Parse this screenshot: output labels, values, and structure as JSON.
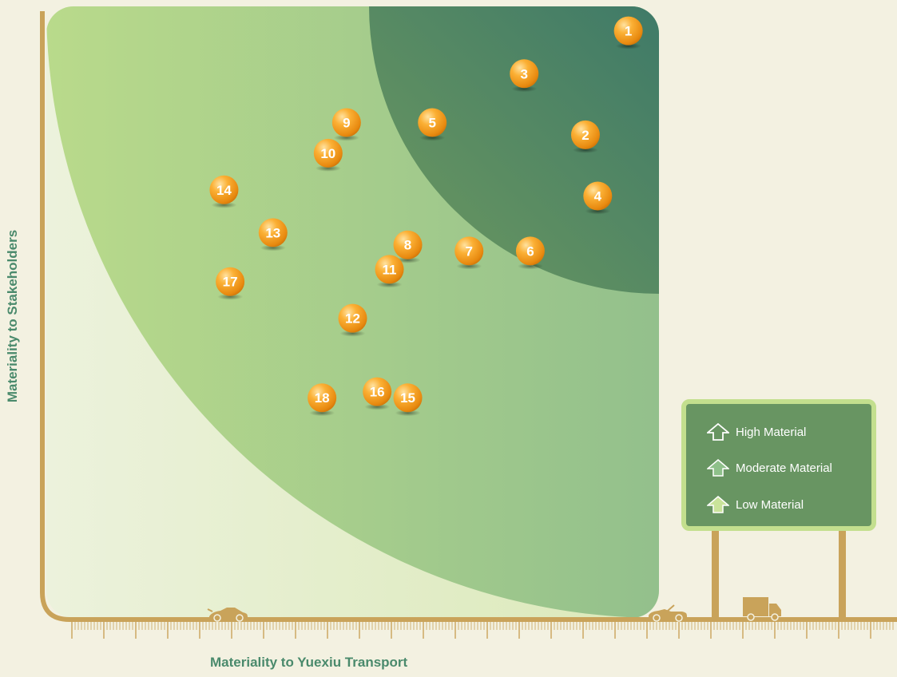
{
  "chart_data": {
    "type": "scatter",
    "title": "",
    "xlabel": "Materiality to Yuexiu Transport",
    "ylabel": "Materiality to Stakeholders",
    "xlim": [
      0,
      10
    ],
    "ylim": [
      0,
      10
    ],
    "grid": false,
    "legend_position": "bottom-right",
    "zones": [
      {
        "name": "High Material",
        "color": "#547f5c"
      },
      {
        "name": "Moderate Material",
        "color": "#8fc18a"
      },
      {
        "name": "Low Material",
        "color": "#c3dd8e"
      }
    ],
    "points": [
      {
        "label": "1",
        "x": 9.5,
        "y": 9.6
      },
      {
        "label": "2",
        "x": 8.8,
        "y": 7.9
      },
      {
        "label": "3",
        "x": 7.8,
        "y": 8.9
      },
      {
        "label": "4",
        "x": 9.0,
        "y": 6.9
      },
      {
        "label": "5",
        "x": 6.3,
        "y": 8.1
      },
      {
        "label": "6",
        "x": 7.9,
        "y": 6.0
      },
      {
        "label": "7",
        "x": 6.9,
        "y": 6.0
      },
      {
        "label": "8",
        "x": 5.9,
        "y": 6.1
      },
      {
        "label": "9",
        "x": 4.9,
        "y": 8.1
      },
      {
        "label": "10",
        "x": 4.6,
        "y": 7.6
      },
      {
        "label": "11",
        "x": 5.6,
        "y": 5.7
      },
      {
        "label": "12",
        "x": 5.0,
        "y": 4.9
      },
      {
        "label": "13",
        "x": 3.7,
        "y": 6.3
      },
      {
        "label": "14",
        "x": 2.9,
        "y": 7.0
      },
      {
        "label": "15",
        "x": 5.9,
        "y": 3.6
      },
      {
        "label": "16",
        "x": 5.4,
        "y": 3.7
      },
      {
        "label": "17",
        "x": 3.0,
        "y": 5.5
      },
      {
        "label": "18",
        "x": 4.5,
        "y": 3.6
      }
    ]
  },
  "legend": {
    "items": [
      {
        "label": "High Material",
        "color": "#ffffff"
      },
      {
        "label": "Moderate Material",
        "color": "#8ec08a"
      },
      {
        "label": "Low Material",
        "color": "#c9e39a"
      }
    ]
  },
  "colors": {
    "background": "#f3f1e1",
    "axis": "#c9a35a",
    "bubble": "#f29a1e",
    "label": "#4a8a6c"
  },
  "decorations": {
    "icons": [
      "sports-car-icon",
      "convertible-car-icon",
      "truck-icon"
    ]
  }
}
